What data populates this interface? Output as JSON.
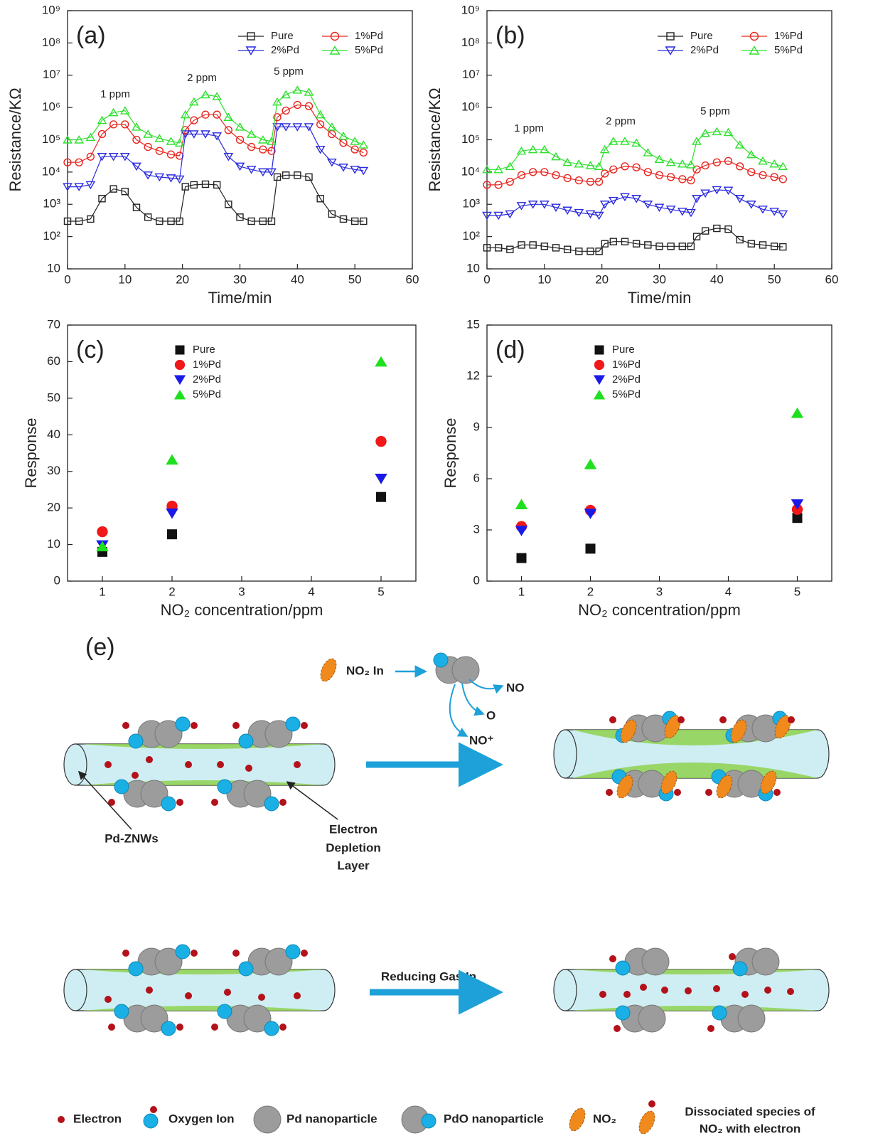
{
  "chart_data": [
    {
      "type": "line",
      "panel_label": "(a)",
      "x_label": "Time/min",
      "y_label": "Resistance/KΩ",
      "log_y": true,
      "marker_filled": false,
      "legend": "upper right",
      "xlim": [
        0,
        60
      ],
      "xticks": [
        0,
        10,
        20,
        30,
        40,
        50,
        60
      ],
      "ylim": [
        10,
        1000000000
      ],
      "yticks": [
        10,
        {
          "value": 100,
          "label": "10²"
        },
        {
          "value": 1000,
          "label": "10³"
        },
        {
          "value": 10000,
          "label": "10⁴"
        },
        {
          "value": 100000,
          "label": "10⁵"
        },
        {
          "value": 1000000,
          "label": "10⁶"
        },
        {
          "value": 10000000,
          "label": "10⁷"
        },
        {
          "value": 100000000,
          "label": "10⁸"
        },
        {
          "value": 1000000000,
          "label": "10⁹"
        }
      ],
      "annotations": [
        "1 ppm",
        "2 ppm",
        "5 ppm"
      ],
      "x": [
        0,
        2,
        4,
        6,
        8,
        10,
        12,
        14,
        16,
        18,
        19.5,
        20.5,
        22,
        24,
        26,
        28,
        30,
        32,
        34,
        35.5,
        36.5,
        38,
        40,
        42,
        44,
        46,
        48,
        50,
        51.5
      ],
      "series": [
        {
          "name": "Pure",
          "color": "#222222",
          "marker": "square",
          "values": [
            300,
            300,
            350,
            1500,
            3000,
            2500,
            800,
            400,
            300,
            300,
            300,
            3500,
            4000,
            4200,
            4000,
            1000,
            400,
            300,
            300,
            300,
            7000,
            8000,
            8000,
            7000,
            1500,
            500,
            350,
            300,
            300
          ]
        },
        {
          "name": "1%Pd",
          "color": "#e8251f",
          "marker": "circle",
          "values": [
            20000,
            20000,
            30000,
            150000,
            300000,
            300000,
            100000,
            60000,
            45000,
            35000,
            32000,
            200000,
            400000,
            600000,
            600000,
            200000,
            100000,
            60000,
            50000,
            45000,
            500000,
            800000,
            1200000,
            1100000,
            300000,
            150000,
            80000,
            50000,
            40000
          ]
        },
        {
          "name": "2%Pd",
          "color": "#2a2ae0",
          "marker": "triangle-down",
          "values": [
            3500,
            3500,
            4000,
            30000,
            30000,
            30000,
            15000,
            8000,
            7000,
            6500,
            6000,
            150000,
            150000,
            150000,
            130000,
            30000,
            15000,
            12000,
            10000,
            10000,
            250000,
            250000,
            250000,
            250000,
            50000,
            20000,
            14000,
            12000,
            11000
          ]
        },
        {
          "name": "5%Pd",
          "color": "#2ee02e",
          "marker": "triangle-up",
          "values": [
            100000,
            100000,
            120000,
            400000,
            700000,
            800000,
            250000,
            150000,
            110000,
            90000,
            80000,
            600000,
            1500000,
            2500000,
            2200000,
            500000,
            250000,
            150000,
            100000,
            90000,
            1500000,
            2500000,
            3500000,
            3000000,
            600000,
            250000,
            130000,
            90000,
            70000
          ]
        }
      ]
    },
    {
      "type": "line",
      "panel_label": "(b)",
      "x_label": "Time/min",
      "y_label": "Resistance/KΩ",
      "log_y": true,
      "marker_filled": false,
      "legend": "upper right",
      "xlim": [
        0,
        60
      ],
      "xticks": [
        0,
        10,
        20,
        30,
        40,
        50,
        60
      ],
      "ylim": [
        10,
        1000000000
      ],
      "yticks": [
        10,
        {
          "value": 100,
          "label": "10²"
        },
        {
          "value": 1000,
          "label": "10³"
        },
        {
          "value": 10000,
          "label": "10⁴"
        },
        {
          "value": 100000,
          "label": "10⁵"
        },
        {
          "value": 1000000,
          "label": "10⁶"
        },
        {
          "value": 10000000,
          "label": "10⁷"
        },
        {
          "value": 100000000,
          "label": "10⁸"
        },
        {
          "value": 1000000000,
          "label": "10⁹"
        }
      ],
      "annotations": [
        "1 ppm",
        "2 ppm",
        "5 ppm"
      ],
      "x": [
        0,
        2,
        4,
        6,
        8,
        10,
        12,
        14,
        16,
        18,
        19.5,
        20.5,
        22,
        24,
        26,
        28,
        30,
        32,
        34,
        35.5,
        36.5,
        38,
        40,
        42,
        44,
        46,
        48,
        50,
        51.5
      ],
      "series": [
        {
          "name": "Pure",
          "color": "#222222",
          "marker": "square",
          "values": [
            45,
            45,
            40,
            55,
            55,
            50,
            45,
            40,
            35,
            35,
            35,
            60,
            70,
            70,
            60,
            55,
            50,
            50,
            50,
            50,
            100,
            150,
            180,
            170,
            80,
            60,
            55,
            50,
            48
          ]
        },
        {
          "name": "1%Pd",
          "color": "#e8251f",
          "marker": "circle",
          "values": [
            4000,
            4000,
            5000,
            8000,
            10000,
            10000,
            8000,
            6500,
            5500,
            5000,
            5000,
            9000,
            12000,
            15000,
            14000,
            10000,
            8000,
            7000,
            6000,
            5500,
            12000,
            16000,
            20000,
            22000,
            15000,
            10000,
            8000,
            7000,
            6000
          ]
        },
        {
          "name": "2%Pd",
          "color": "#2a2ae0",
          "marker": "triangle-down",
          "values": [
            450,
            450,
            500,
            900,
            1000,
            1000,
            800,
            650,
            550,
            500,
            450,
            1000,
            1300,
            1700,
            1500,
            1000,
            800,
            700,
            600,
            550,
            1500,
            2200,
            2800,
            2700,
            1500,
            1000,
            700,
            600,
            500
          ]
        },
        {
          "name": "5%Pd",
          "color": "#2ee02e",
          "marker": "triangle-up",
          "values": [
            12000,
            12000,
            15000,
            45000,
            50000,
            50000,
            30000,
            20000,
            18000,
            16000,
            15000,
            50000,
            90000,
            90000,
            80000,
            40000,
            25000,
            20000,
            18000,
            17000,
            90000,
            160000,
            180000,
            170000,
            70000,
            35000,
            22000,
            18000,
            15000
          ]
        }
      ]
    },
    {
      "type": "scatter",
      "panel_label": "(c)",
      "x_label": "NO₂ concentration/ppm",
      "y_label": "Response",
      "log_y": false,
      "marker_filled": true,
      "legend": "upper left",
      "xlim": [
        0.5,
        5.5
      ],
      "xticks": [
        1,
        2,
        3,
        4,
        5
      ],
      "ylim": [
        0,
        70
      ],
      "yticks": [
        0,
        10,
        20,
        30,
        40,
        50,
        60,
        70
      ],
      "x": [
        1,
        2,
        5
      ],
      "series": [
        {
          "name": "Pure",
          "color": "#111111",
          "marker": "square",
          "values": [
            8,
            12.8,
            23
          ]
        },
        {
          "name": "1%Pd",
          "color": "#f01818",
          "marker": "circle",
          "values": [
            13.5,
            20.5,
            38.2
          ]
        },
        {
          "name": "2%Pd",
          "color": "#1a1ae8",
          "marker": "triangle-down",
          "values": [
            9.8,
            18.5,
            28
          ]
        },
        {
          "name": "5%Pd",
          "color": "#1ee01e",
          "marker": "triangle-up",
          "values": [
            9.5,
            33.2,
            60
          ]
        }
      ]
    },
    {
      "type": "scatter",
      "panel_label": "(d)",
      "x_label": "NO₂ concentration/ppm",
      "y_label": "Response",
      "log_y": false,
      "marker_filled": true,
      "legend": "upper left",
      "xlim": [
        0.5,
        5.5
      ],
      "xticks": [
        1,
        2,
        3,
        4,
        5
      ],
      "ylim": [
        0,
        15
      ],
      "yticks": [
        0,
        3,
        6,
        9,
        12,
        15
      ],
      "x": [
        1,
        2,
        5
      ],
      "series": [
        {
          "name": "Pure",
          "color": "#111111",
          "marker": "square",
          "values": [
            1.35,
            1.9,
            3.7
          ]
        },
        {
          "name": "1%Pd",
          "color": "#f01818",
          "marker": "circle",
          "values": [
            3.2,
            4.15,
            4.2
          ]
        },
        {
          "name": "2%Pd",
          "color": "#1a1ae8",
          "marker": "triangle-down",
          "values": [
            2.95,
            3.95,
            4.5
          ]
        },
        {
          "name": "5%Pd",
          "color": "#1ee01e",
          "marker": "triangle-up",
          "values": [
            4.5,
            6.85,
            9.85
          ]
        }
      ]
    }
  ],
  "diagram": {
    "label": "(e)",
    "no2_in": "NO₂ In",
    "products": [
      "NO",
      "O",
      "NO⁺"
    ],
    "wire_label": "Pd-ZNWs",
    "depletion_label": [
      "Electron",
      "Depletion",
      "Layer"
    ],
    "reducing_gas": "Reducing Gas  In",
    "legend": [
      "Electron",
      "Oxygen Ion",
      "Pd nanoparticle",
      "PdO nanoparticle",
      "NO₂"
    ],
    "dissociated": [
      "Dissociated species of",
      "NO₂ with electron"
    ]
  }
}
